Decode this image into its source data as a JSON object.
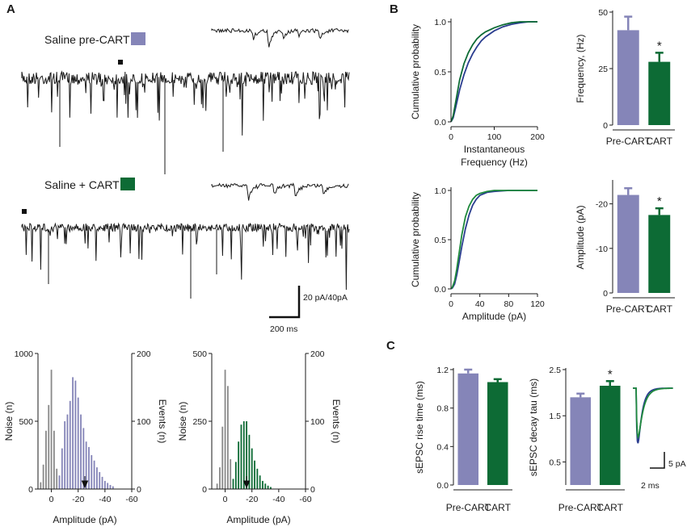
{
  "panels": {
    "a": "A",
    "b": "B",
    "c": "C"
  },
  "colors": {
    "pre": "#8585b8",
    "cart": "#0d6b35",
    "noise": "#8a8a8a",
    "trace": "#111111",
    "blue_line": "#2a3d8f",
    "green_line": "#1f8a3d"
  },
  "traces": {
    "pre_label": "Saline pre-CART",
    "cart_label": "Saline + CART",
    "scale_y": "20 pA/40pA",
    "scale_x": "200 ms"
  },
  "chart_data": [
    {
      "id": "hist_pre",
      "type": "bar",
      "title": "",
      "xlabel": "Amplitude (pA)",
      "ylabel": "Noise (n)",
      "y2label": "Events (n)",
      "xlim": [
        10,
        -60
      ],
      "xticks": [
        "0",
        "-20",
        "-40",
        "-60"
      ],
      "ylim": [
        0,
        1000
      ],
      "yticks": [
        "0",
        "500",
        "1000"
      ],
      "y2lim": [
        0,
        200
      ],
      "y2ticks": [
        "0",
        "100",
        "200"
      ],
      "arrow_at": -25,
      "series": [
        {
          "name": "Noise",
          "x": [
            8,
            6,
            4,
            2,
            0,
            -2,
            -4
          ],
          "values": [
            50,
            180,
            430,
            620,
            880,
            430,
            150
          ]
        },
        {
          "name": "Events",
          "x": [
            -6,
            -8,
            -10,
            -12,
            -14,
            -16,
            -18,
            -20,
            -22,
            -24,
            -26,
            -28,
            -30,
            -32,
            -34,
            -36,
            -38,
            -40,
            -42,
            -44,
            -46
          ],
          "values": [
            20,
            60,
            100,
            110,
            130,
            165,
            160,
            135,
            110,
            90,
            70,
            62,
            50,
            42,
            32,
            25,
            18,
            12,
            9,
            6,
            4
          ]
        }
      ]
    },
    {
      "id": "hist_cart",
      "type": "bar",
      "title": "",
      "xlabel": "Amplitude (pA)",
      "ylabel": "Noise (n)",
      "y2label": "Events (n)",
      "xlim": [
        10,
        -60
      ],
      "xticks": [
        "0",
        "-20",
        "-40",
        "-60"
      ],
      "ylim": [
        0,
        500
      ],
      "yticks": [
        "0",
        "250",
        "500"
      ],
      "y2lim": [
        0,
        200
      ],
      "y2ticks": [
        "0",
        "100",
        "200"
      ],
      "arrow_at": -16,
      "series": [
        {
          "name": "Noise",
          "x": [
            6,
            4,
            2,
            0,
            -2,
            -4
          ],
          "values": [
            20,
            80,
            230,
            440,
            380,
            110
          ]
        },
        {
          "name": "Events",
          "x": [
            -6,
            -8,
            -10,
            -12,
            -14,
            -16,
            -18,
            -20,
            -22,
            -24,
            -26,
            -28,
            -30,
            -32,
            -34
          ],
          "values": [
            15,
            40,
            70,
            95,
            100,
            100,
            80,
            60,
            42,
            30,
            20,
            12,
            8,
            5,
            3
          ]
        }
      ]
    },
    {
      "id": "cdf_freq",
      "type": "line",
      "title": "",
      "xlabel": "Instantaneous",
      "xlabel2": "Frequency (Hz)",
      "ylabel": "Cumulative probability",
      "xlim": [
        0,
        200
      ],
      "xticks": [
        0,
        100,
        200
      ],
      "ylim": [
        0,
        1
      ],
      "yticks": [
        "0.0",
        "0.5",
        "1.0"
      ],
      "series": [
        {
          "name": "pre-CART",
          "color": "blue_line",
          "x": [
            0,
            5,
            10,
            20,
            30,
            40,
            50,
            60,
            70,
            80,
            100,
            120,
            140,
            160,
            180,
            200
          ],
          "values": [
            0,
            0.04,
            0.13,
            0.32,
            0.47,
            0.59,
            0.68,
            0.75,
            0.81,
            0.85,
            0.91,
            0.95,
            0.975,
            0.99,
            1.0,
            1.0
          ]
        },
        {
          "name": "CART",
          "color": "cart",
          "x": [
            0,
            5,
            10,
            20,
            30,
            40,
            50,
            60,
            70,
            80,
            100,
            120,
            140,
            160,
            180,
            200
          ],
          "values": [
            0,
            0.06,
            0.18,
            0.42,
            0.58,
            0.69,
            0.77,
            0.83,
            0.87,
            0.9,
            0.94,
            0.97,
            0.99,
            1.0,
            1.0,
            1.0
          ]
        }
      ]
    },
    {
      "id": "bar_freq",
      "type": "bar",
      "title": "",
      "xlabel": "",
      "ylabel": "Frequency, (Hz)",
      "ylim": [
        0,
        50
      ],
      "yticks": [
        "0",
        "25",
        "50"
      ],
      "categories": [
        "Pre-CART",
        "CART"
      ],
      "values": [
        42,
        28
      ],
      "errors": [
        6,
        4
      ],
      "significance": [
        "",
        "*"
      ]
    },
    {
      "id": "cdf_amp",
      "type": "line",
      "title": "",
      "xlabel": "Amplitude (pA)",
      "ylabel": "Cumulative probability",
      "xlim": [
        0,
        120
      ],
      "xticks": [
        0,
        40,
        80,
        120
      ],
      "ylim": [
        0,
        1
      ],
      "yticks": [
        "0.0",
        "0.5",
        "1.0"
      ],
      "series": [
        {
          "name": "pre-CART",
          "color": "blue_line",
          "x": [
            0,
            2,
            5,
            8,
            10,
            15,
            20,
            25,
            30,
            35,
            40,
            50,
            60,
            80,
            100,
            120
          ],
          "values": [
            0,
            0.01,
            0.05,
            0.14,
            0.22,
            0.43,
            0.61,
            0.75,
            0.85,
            0.91,
            0.95,
            0.98,
            0.99,
            1.0,
            1.0,
            1.0
          ]
        },
        {
          "name": "CART",
          "color": "green_line",
          "x": [
            0,
            2,
            5,
            8,
            10,
            15,
            20,
            25,
            30,
            35,
            40,
            50,
            60,
            80,
            100,
            120
          ],
          "values": [
            0,
            0.02,
            0.08,
            0.2,
            0.3,
            0.55,
            0.73,
            0.84,
            0.91,
            0.95,
            0.97,
            0.99,
            1.0,
            1.0,
            1.0,
            1.0
          ]
        }
      ]
    },
    {
      "id": "bar_amp",
      "type": "bar",
      "title": "",
      "xlabel": "",
      "ylabel": "Amplitude (pA)",
      "ylim": [
        0,
        -25
      ],
      "yticks": [
        "0",
        "-10",
        "-20"
      ],
      "categories": [
        "Pre-CART",
        "CART"
      ],
      "values": [
        -22,
        -17.5
      ],
      "errors": [
        1.5,
        1.5
      ],
      "significance": [
        "",
        "*"
      ]
    },
    {
      "id": "bar_rise",
      "type": "bar",
      "title": "",
      "xlabel": "",
      "ylabel": "sEPSC rise time (ms)",
      "ylim": [
        0,
        1.2
      ],
      "yticks": [
        "0.0",
        "0.4",
        "0.8",
        "1.2"
      ],
      "categories": [
        "Pre-CART",
        "CART"
      ],
      "values": [
        1.16,
        1.07
      ],
      "errors": [
        0.04,
        0.03
      ],
      "significance": [
        "",
        ""
      ]
    },
    {
      "id": "bar_decay",
      "type": "bar",
      "title": "",
      "xlabel": "",
      "ylabel": "sEPSC decay tau (ms)",
      "ylim": [
        0,
        2.5
      ],
      "yticks": [
        "0.5",
        "1.5",
        "2.5"
      ],
      "categories": [
        "Pre-CART",
        "CART"
      ],
      "values": [
        1.9,
        2.15
      ],
      "errors": [
        0.08,
        0.1
      ],
      "significance": [
        "",
        "*"
      ]
    }
  ],
  "waveform": {
    "scale_y": "5 pA",
    "scale_x": "2 ms"
  }
}
